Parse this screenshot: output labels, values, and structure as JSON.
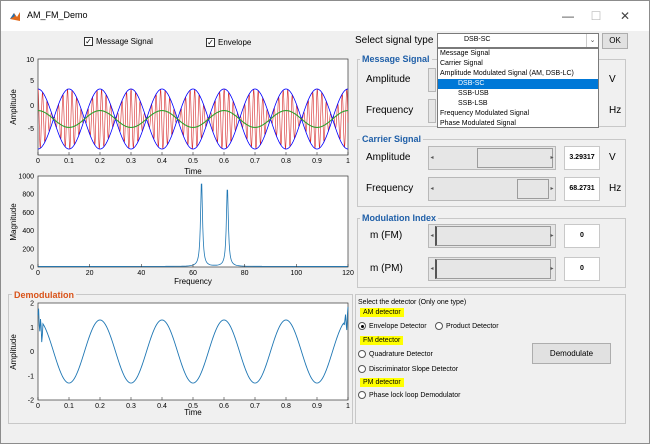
{
  "window": {
    "title": "AM_FM_Demo",
    "min": "—",
    "max": "☐",
    "close": "✕"
  },
  "checks": {
    "message": "Message Signal",
    "envelope": "Envelope"
  },
  "select": {
    "label": "Select signal type",
    "value": "DSB-SC",
    "ok": "OK",
    "options": [
      "Message Signal",
      "Carrier Signal",
      "Amplitude Modulated Signal (AM, DSB-LC)",
      "DSB-SC",
      "SSB-USB",
      "SSB-LSB",
      "Frequency Modulated Signal",
      "Phase Modulated Signal"
    ],
    "highlighted": 3
  },
  "message_panel": {
    "title": "Message Signal",
    "amplitude": "Amplitude",
    "frequency": "Frequency",
    "v": "V",
    "hz": "Hz"
  },
  "carrier_panel": {
    "title": "Carrier Signal",
    "amplitude": "Amplitude",
    "frequency": "Frequency",
    "amp_value": "3.29317",
    "freq_value": "68.2731",
    "v": "V",
    "hz": "Hz"
  },
  "modidx_panel": {
    "title": "Modulation Index",
    "fm_label": "m (FM)",
    "pm_label": "m (PM)",
    "fm_value": "0",
    "pm_value": "0"
  },
  "demod": {
    "title": "Demodulation",
    "selector_label": "Select the detector (Only one type)",
    "am_header": "AM detector",
    "fm_header": "FM detector",
    "pm_header": "PM detector",
    "envelope": "Envelope Detector",
    "product": "Product Detector",
    "quadrature": "Quadrature Detector",
    "discriminator": "Discriminator Slope Detector",
    "pll": "Phase lock loop Demodulator",
    "button": "Demodulate",
    "selected": "Envelope Detector"
  },
  "plots": {
    "time_plot": {
      "xlabel": "Time",
      "ylabel": "Amplitude",
      "yticks": [
        "10",
        "5",
        "0",
        "-5"
      ],
      "xticks": [
        "0",
        "0.1",
        "0.2",
        "0.3",
        "0.4",
        "0.5",
        "0.6",
        "0.7",
        "0.8",
        "0.9",
        "1"
      ]
    },
    "freq_plot": {
      "xlabel": "Frequency",
      "ylabel": "Magnitude",
      "yticks": [
        "1000",
        "800",
        "600",
        "400",
        "200",
        "0"
      ],
      "xticks": [
        "0",
        "20",
        "40",
        "60",
        "80",
        "100",
        "120"
      ]
    },
    "demod_plot": {
      "xlabel": "Time",
      "ylabel": "Amplitude",
      "yticks": [
        "2",
        "1",
        "0",
        "-1",
        "-2"
      ],
      "xticks": [
        "0",
        "0.1",
        "0.2",
        "0.3",
        "0.4",
        "0.5",
        "0.6",
        "0.7",
        "0.8",
        "0.9",
        "1"
      ]
    }
  },
  "chart_data": [
    {
      "type": "line",
      "xlabel": "Time",
      "ylabel": "Amplitude",
      "xlim": [
        0,
        1
      ],
      "ylim": [
        -6,
        10
      ],
      "series": [
        {
          "color": "#d62728",
          "values": "DSB-SC carrier, ~68 Hz, envelope ±5"
        },
        {
          "color": "#0000ff",
          "values": "envelope ±5"
        },
        {
          "color": "#2ca02c",
          "values": "message, amplitude ~1.4, ~5 Hz"
        }
      ]
    },
    {
      "type": "line",
      "xlabel": "Frequency",
      "ylabel": "Magnitude",
      "xlim": [
        0,
        120
      ],
      "ylim": [
        0,
        1000
      ],
      "series": [
        {
          "color": "#1f77b4",
          "peaks": [
            {
              "x": 63,
              "y": 950
            },
            {
              "x": 73,
              "y": 880
            }
          ]
        }
      ]
    },
    {
      "type": "line",
      "xlabel": "Time",
      "ylabel": "Amplitude",
      "xlim": [
        0,
        1
      ],
      "ylim": [
        -2,
        2
      ],
      "series": [
        {
          "color": "#1f77b4",
          "values": "sinusoid ~5 Hz, amplitude ~1.3"
        }
      ]
    }
  ]
}
